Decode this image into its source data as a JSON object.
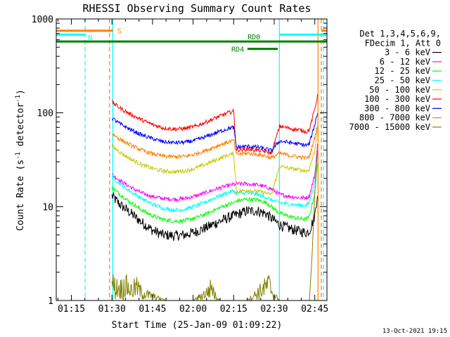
{
  "chart_data": {
    "type": "line",
    "title": "RHESSI Observing Summary Count Rates",
    "xlabel": "Start Time (25-Jan-09 01:09:22)",
    "ylabel": "Count Rate (s",
    "ylabel_sup": "-1",
    "ylabel_tail": " detector",
    "ylabel_end": ")",
    "yscale": "log",
    "ylim": [
      1,
      1000
    ],
    "xlim_minutes": [
      69.4,
      169.5
    ],
    "x_ticks": [
      {
        "label": "01:15",
        "minutes": 75
      },
      {
        "label": "01:30",
        "minutes": 90
      },
      {
        "label": "01:45",
        "minutes": 105
      },
      {
        "label": "02:00",
        "minutes": 120
      },
      {
        "label": "02:15",
        "minutes": 135
      },
      {
        "label": "02:30",
        "minutes": 150
      },
      {
        "label": "02:45",
        "minutes": 165
      }
    ],
    "y_ticks": [
      {
        "label": "1",
        "value": 1
      },
      {
        "label": "10",
        "value": 10
      },
      {
        "label": "100",
        "value": 100
      },
      {
        "label": "1000",
        "value": 1000
      }
    ],
    "legend_title": [
      "Det 1,3,4,5,6,9,",
      "FDecim 1, Att 0"
    ],
    "legend_position": "right",
    "series": [
      {
        "name": "3 - 6 keV",
        "color": "#000000",
        "x": [
          90,
          93,
          97,
          101,
          105,
          109,
          113,
          117,
          121,
          125,
          129,
          133,
          135,
          136,
          140,
          144,
          147,
          149,
          152,
          156,
          160,
          162,
          163,
          165,
          166
        ],
        "y": [
          13,
          10.5,
          8.5,
          6.8,
          5.6,
          5.0,
          4.9,
          5.0,
          5.4,
          6.0,
          6.8,
          7.6,
          8.0,
          8.2,
          9.0,
          9.0,
          8.4,
          7.5,
          6.4,
          5.8,
          5.4,
          5.3,
          5.5,
          8,
          14
        ]
      },
      {
        "name": "6 - 12 keV",
        "color": "#ff00ff",
        "x": [
          90,
          93,
          97,
          101,
          105,
          109,
          113,
          117,
          121,
          125,
          129,
          133,
          135,
          136,
          140,
          144,
          147,
          149,
          152,
          156,
          160,
          162,
          163,
          165,
          166
        ],
        "y": [
          22,
          19,
          16,
          14,
          12.8,
          12.2,
          12.0,
          12.2,
          13.0,
          14.2,
          15.6,
          16.8,
          17.2,
          17.5,
          17.5,
          17.0,
          16.2,
          15.4,
          13.5,
          12.8,
          12.4,
          12.5,
          13,
          22,
          45
        ]
      },
      {
        "name": "12 - 25 keV",
        "color": "#00ff00",
        "x": [
          90,
          93,
          97,
          101,
          105,
          109,
          113,
          117,
          121,
          125,
          129,
          133,
          135,
          136,
          140,
          144,
          147,
          149,
          152,
          156,
          160,
          162,
          163,
          165,
          166
        ],
        "y": [
          16,
          13.5,
          11,
          9.2,
          8.0,
          7.3,
          7.0,
          7.1,
          7.6,
          8.4,
          9.5,
          10.6,
          11.0,
          11.5,
          12.0,
          11.8,
          11.0,
          10.0,
          8.5,
          7.8,
          7.4,
          7.4,
          7.8,
          14,
          30
        ]
      },
      {
        "name": "25 - 50 keV",
        "color": "#00ffff",
        "x": [
          90,
          93,
          97,
          101,
          105,
          109,
          113,
          117,
          121,
          125,
          129,
          133,
          135,
          136,
          140,
          144,
          147,
          149,
          152,
          156,
          160,
          162,
          163,
          165,
          166
        ],
        "y": [
          21,
          17.5,
          14.5,
          12.2,
          10.6,
          9.6,
          9.2,
          9.4,
          10.2,
          11.3,
          12.8,
          14.2,
          14.8,
          13.8,
          14.0,
          13.4,
          12.6,
          11.8,
          11.0,
          10.6,
          10.3,
          10.4,
          11,
          19,
          40
        ]
      },
      {
        "name": "50 - 100 keV",
        "color": "#c8c800",
        "x": [
          90,
          93,
          97,
          101,
          105,
          109,
          113,
          117,
          121,
          125,
          129,
          133,
          135,
          136,
          140,
          144,
          147,
          149,
          152,
          156,
          160,
          162,
          163,
          165,
          166
        ],
        "y": [
          44,
          38,
          32,
          28,
          25.5,
          24.0,
          23.5,
          24.0,
          25.8,
          28.5,
          32.0,
          35.5,
          36.5,
          14.5,
          15.0,
          14.5,
          14.0,
          13.5,
          27,
          25.5,
          24.5,
          24.0,
          25,
          40,
          70
        ]
      },
      {
        "name": "100 - 300 keV",
        "color": "#ff0000",
        "x": [
          90,
          93,
          97,
          101,
          105,
          109,
          113,
          117,
          121,
          125,
          129,
          133,
          135,
          136,
          140,
          144,
          147,
          149,
          152,
          156,
          160,
          162,
          163,
          165,
          166
        ],
        "y": [
          130,
          112,
          96,
          84,
          75,
          69,
          67,
          68,
          72,
          80,
          90,
          100,
          104,
          40,
          41,
          40,
          38.5,
          37,
          72,
          68,
          65,
          63,
          66,
          110,
          150
        ]
      },
      {
        "name": "300 - 800 keV",
        "color": "#0000ff",
        "x": [
          90,
          93,
          97,
          101,
          105,
          109,
          113,
          117,
          121,
          125,
          129,
          133,
          135,
          136,
          140,
          144,
          147,
          149,
          152,
          156,
          160,
          162,
          163,
          165,
          166
        ],
        "y": [
          88,
          76,
          66,
          58,
          53,
          49,
          48,
          48.5,
          51,
          56,
          62,
          68,
          70,
          43,
          44,
          43,
          41,
          39.5,
          50,
          48,
          46,
          45,
          47,
          75,
          100
        ]
      },
      {
        "name": "800 - 7000 keV",
        "color": "#ff8000",
        "x": [
          90,
          93,
          97,
          101,
          105,
          109,
          113,
          117,
          121,
          125,
          129,
          133,
          135,
          136,
          140,
          144,
          147,
          149,
          152,
          156,
          160,
          162,
          163,
          165,
          166
        ],
        "y": [
          60,
          52,
          45,
          40,
          36.5,
          34.5,
          34,
          34.3,
          36.5,
          40,
          44.5,
          49,
          51,
          36,
          37,
          36,
          34.5,
          33,
          37,
          35,
          33.5,
          33,
          34,
          55,
          75
        ]
      },
      {
        "name": "7000 - 15000 keV",
        "color": "#808000",
        "x": [
          90,
          91,
          93,
          95,
          97,
          99,
          101,
          110,
          120,
          125,
          127,
          128,
          130,
          140,
          145,
          148,
          150,
          152,
          160,
          163,
          164,
          165,
          166
        ],
        "y": [
          1.8,
          1.6,
          1.5,
          1.7,
          1.4,
          1.6,
          1.3,
          1,
          1,
          1.3,
          1.6,
          1.2,
          1,
          1,
          1.4,
          1.7,
          1.2,
          1,
          1,
          1,
          3,
          14,
          40
        ]
      }
    ],
    "annotations": [
      {
        "text": "S",
        "color": "#ff8000",
        "kind": "state-flag"
      },
      {
        "text": "N",
        "color": "#00ffff",
        "kind": "state-flag"
      },
      {
        "text": "RD0",
        "color": "#008000",
        "kind": "state-flag"
      },
      {
        "text": "RD4",
        "color": "#008000",
        "kind": "state-flag"
      }
    ],
    "state_segments": [
      {
        "name": "S",
        "color": "#ff8000",
        "y_value": 750,
        "from": 69.4,
        "to": 90.4
      },
      {
        "name": "S",
        "color": "#ff8000",
        "y_value": 750,
        "from": 167.4,
        "to": 169.5
      },
      {
        "name": "N",
        "color": "#00ffff",
        "y_value": 680,
        "from": 69.4,
        "to": 80.1
      },
      {
        "name": "N",
        "color": "#00ffff",
        "y_value": 680,
        "from": 152.0,
        "to": 169.5
      },
      {
        "name": "RD0",
        "color": "#008000",
        "y_value": 575,
        "from": 69.4,
        "to": 151.3
      },
      {
        "name": "RD0",
        "color": "#008000",
        "y_value": 575,
        "from": 151.3,
        "to": 169.5
      },
      {
        "name": "RD4",
        "color": "#008000",
        "y_value": 480,
        "from": 140.1,
        "to": 151.3
      }
    ],
    "vertical_markers": [
      {
        "minutes": 80.1,
        "color": "#00ffff",
        "style": "dashed"
      },
      {
        "minutes": 89.1,
        "color": "#ff8000",
        "style": "dashed"
      },
      {
        "minutes": 90.3,
        "color": "#00ffff",
        "style": "solid"
      },
      {
        "minutes": 151.9,
        "color": "#00ffff",
        "style": "solid"
      },
      {
        "minutes": 166.2,
        "color": "#ff8000",
        "style": "solid"
      },
      {
        "minutes": 167.4,
        "color": "#ff8000",
        "style": "dashed"
      },
      {
        "minutes": 168.2,
        "color": "#00ffff",
        "style": "dashed"
      }
    ],
    "footer_timestamp": "13-Oct-2021 19:15"
  }
}
